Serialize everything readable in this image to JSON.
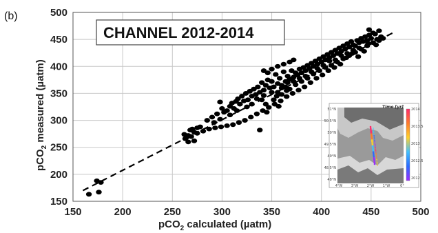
{
  "panel_label": "(b)",
  "chart_data": {
    "type": "scatter",
    "title": "CHANNEL 2012-2014",
    "xlabel_main": "pCO",
    "xlabel_sub": "2",
    "xlabel_rest": " calculated (µatm)",
    "ylabel_main": "pCO",
    "ylabel_sub": "2",
    "ylabel_rest": " measured (µatm)",
    "xlim": [
      150,
      500
    ],
    "ylim": [
      150,
      500
    ],
    "xticks": [
      150,
      200,
      250,
      300,
      350,
      400,
      450,
      500
    ],
    "yticks": [
      150,
      200,
      250,
      300,
      350,
      400,
      450,
      500
    ],
    "grid": true,
    "point_color": "#000000",
    "fit_line": {
      "style": "dashed",
      "x": [
        160,
        475
      ],
      "y": [
        170,
        465
      ]
    },
    "points": [
      [
        166,
        163
      ],
      [
        174,
        188
      ],
      [
        176,
        167
      ],
      [
        178,
        185
      ],
      [
        262,
        274
      ],
      [
        264,
        268
      ],
      [
        266,
        272
      ],
      [
        268,
        282
      ],
      [
        270,
        284
      ],
      [
        272,
        278
      ],
      [
        275,
        286
      ],
      [
        278,
        288
      ],
      [
        272,
        262
      ],
      [
        266,
        260
      ],
      [
        285,
        300
      ],
      [
        290,
        306
      ],
      [
        295,
        312
      ],
      [
        298,
        302
      ],
      [
        292,
        296
      ],
      [
        300,
        322
      ],
      [
        302,
        315
      ],
      [
        298,
        334
      ],
      [
        305,
        318
      ],
      [
        308,
        326
      ],
      [
        310,
        332
      ],
      [
        312,
        322
      ],
      [
        314,
        335
      ],
      [
        316,
        340
      ],
      [
        318,
        330
      ],
      [
        320,
        345
      ],
      [
        322,
        336
      ],
      [
        324,
        350
      ],
      [
        326,
        338
      ],
      [
        328,
        354
      ],
      [
        330,
        345
      ],
      [
        332,
        358
      ],
      [
        334,
        348
      ],
      [
        336,
        362
      ],
      [
        338,
        352
      ],
      [
        340,
        370
      ],
      [
        340,
        338
      ],
      [
        342,
        356
      ],
      [
        344,
        365
      ],
      [
        346,
        375
      ],
      [
        348,
        360
      ],
      [
        350,
        372
      ],
      [
        352,
        362
      ],
      [
        354,
        385
      ],
      [
        355,
        345
      ],
      [
        356,
        368
      ],
      [
        358,
        378
      ],
      [
        360,
        365
      ],
      [
        362,
        390
      ],
      [
        364,
        372
      ],
      [
        365,
        355
      ],
      [
        366,
        382
      ],
      [
        368,
        376
      ],
      [
        370,
        392
      ],
      [
        372,
        380
      ],
      [
        374,
        388
      ],
      [
        376,
        384
      ],
      [
        378,
        395
      ],
      [
        380,
        388
      ],
      [
        382,
        398
      ],
      [
        384,
        392
      ],
      [
        386,
        402
      ],
      [
        388,
        396
      ],
      [
        390,
        406
      ],
      [
        392,
        400
      ],
      [
        394,
        410
      ],
      [
        396,
        404
      ],
      [
        398,
        414
      ],
      [
        400,
        408
      ],
      [
        402,
        418
      ],
      [
        404,
        412
      ],
      [
        406,
        422
      ],
      [
        408,
        416
      ],
      [
        410,
        426
      ],
      [
        412,
        420
      ],
      [
        414,
        430
      ],
      [
        416,
        424
      ],
      [
        418,
        434
      ],
      [
        420,
        428
      ],
      [
        422,
        438
      ],
      [
        424,
        432
      ],
      [
        426,
        442
      ],
      [
        428,
        436
      ],
      [
        430,
        446
      ],
      [
        432,
        440
      ],
      [
        434,
        438
      ],
      [
        436,
        448
      ],
      [
        438,
        444
      ],
      [
        440,
        452
      ],
      [
        442,
        446
      ],
      [
        444,
        455
      ],
      [
        446,
        448
      ],
      [
        448,
        458
      ],
      [
        450,
        452
      ],
      [
        452,
        462
      ],
      [
        454,
        460
      ],
      [
        456,
        450
      ],
      [
        458,
        466
      ],
      [
        460,
        455
      ],
      [
        462,
        452
      ],
      [
        448,
        468
      ],
      [
        338,
        282
      ],
      [
        357,
        326
      ],
      [
        345,
        315
      ],
      [
        330,
        330
      ],
      [
        315,
        318
      ],
      [
        308,
        310
      ],
      [
        325,
        325
      ],
      [
        335,
        340
      ],
      [
        342,
        346
      ],
      [
        350,
        352
      ],
      [
        360,
        360
      ],
      [
        366,
        370
      ],
      [
        372,
        372
      ],
      [
        378,
        378
      ],
      [
        384,
        382
      ],
      [
        390,
        390
      ],
      [
        396,
        396
      ],
      [
        402,
        402
      ],
      [
        408,
        410
      ],
      [
        414,
        412
      ],
      [
        420,
        420
      ],
      [
        426,
        424
      ],
      [
        432,
        430
      ],
      [
        438,
        434
      ],
      [
        346,
        388
      ],
      [
        350,
        395
      ],
      [
        356,
        400
      ],
      [
        362,
        404
      ],
      [
        342,
        392
      ],
      [
        368,
        408
      ],
      [
        372,
        412
      ],
      [
        344,
        330
      ],
      [
        352,
        338
      ],
      [
        356,
        352
      ],
      [
        360,
        348
      ],
      [
        364,
        362
      ],
      [
        368,
        358
      ],
      [
        374,
        366
      ],
      [
        380,
        372
      ],
      [
        386,
        378
      ],
      [
        392,
        386
      ],
      [
        398,
        392
      ],
      [
        404,
        398
      ],
      [
        410,
        402
      ],
      [
        416,
        408
      ],
      [
        422,
        414
      ],
      [
        428,
        420
      ],
      [
        434,
        426
      ],
      [
        440,
        432
      ],
      [
        446,
        438
      ],
      [
        452,
        444
      ],
      [
        458,
        448
      ],
      [
        455,
        440
      ],
      [
        447,
        442
      ],
      [
        443,
        428
      ],
      [
        437,
        418
      ],
      [
        431,
        424
      ],
      [
        425,
        416
      ],
      [
        419,
        404
      ],
      [
        413,
        398
      ],
      [
        407,
        392
      ],
      [
        401,
        384
      ],
      [
        395,
        378
      ],
      [
        389,
        370
      ],
      [
        383,
        362
      ],
      [
        377,
        356
      ],
      [
        371,
        350
      ],
      [
        365,
        344
      ],
      [
        359,
        336
      ],
      [
        353,
        330
      ],
      [
        347,
        324
      ],
      [
        341,
        318
      ],
      [
        335,
        312
      ],
      [
        329,
        306
      ],
      [
        323,
        300
      ],
      [
        317,
        296
      ],
      [
        311,
        292
      ],
      [
        305,
        290
      ],
      [
        299,
        288
      ],
      [
        293,
        286
      ],
      [
        287,
        284
      ],
      [
        281,
        280
      ],
      [
        275,
        276
      ],
      [
        269,
        270
      ],
      [
        263,
        266
      ]
    ]
  },
  "inset": {
    "title": "Time [yr]",
    "lat_labels": [
      "51°N",
      "50.5°N",
      "50°N",
      "49.5°N",
      "49°N",
      "48.5°N",
      "48°N"
    ],
    "lon_labels": [
      "4°W",
      "3°W",
      "2°W",
      "1°W",
      "0°"
    ],
    "colorbar_labels": [
      "2014",
      "2013.5",
      "2013",
      "2012.5",
      "2012"
    ],
    "colorbar_colors": [
      "#ff2a6a",
      "#ff7a2a",
      "#ffd02a",
      "#40c0ff",
      "#2a6aff",
      "#9a2aff"
    ]
  }
}
